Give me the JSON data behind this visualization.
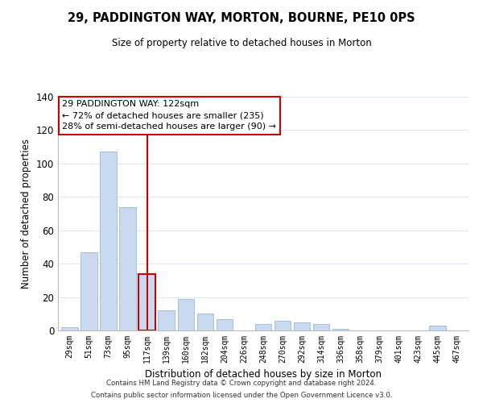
{
  "title": "29, PADDINGTON WAY, MORTON, BOURNE, PE10 0PS",
  "subtitle": "Size of property relative to detached houses in Morton",
  "xlabel": "Distribution of detached houses by size in Morton",
  "ylabel": "Number of detached properties",
  "bar_labels": [
    "29sqm",
    "51sqm",
    "73sqm",
    "95sqm",
    "117sqm",
    "139sqm",
    "160sqm",
    "182sqm",
    "204sqm",
    "226sqm",
    "248sqm",
    "270sqm",
    "292sqm",
    "314sqm",
    "336sqm",
    "358sqm",
    "379sqm",
    "401sqm",
    "423sqm",
    "445sqm",
    "467sqm"
  ],
  "bar_values": [
    2,
    47,
    107,
    74,
    34,
    12,
    19,
    10,
    7,
    0,
    4,
    6,
    5,
    4,
    1,
    0,
    0,
    0,
    0,
    3,
    0
  ],
  "bar_color": "#c8d9f0",
  "bar_edge_color": "#a8bdd8",
  "highlight_bar_index": 4,
  "highlight_bar_edge_color": "#cc0000",
  "vline_x": 4,
  "vline_color": "#cc0000",
  "ylim": [
    0,
    140
  ],
  "yticks": [
    0,
    20,
    40,
    60,
    80,
    100,
    120,
    140
  ],
  "annotation_text": "29 PADDINGTON WAY: 122sqm\n← 72% of detached houses are smaller (235)\n28% of semi-detached houses are larger (90) →",
  "annotation_box_edge": "#cc0000",
  "footer_line1": "Contains HM Land Registry data © Crown copyright and database right 2024.",
  "footer_line2": "Contains public sector information licensed under the Open Government Licence v3.0.",
  "background_color": "#ffffff",
  "grid_color": "#dce8f5"
}
